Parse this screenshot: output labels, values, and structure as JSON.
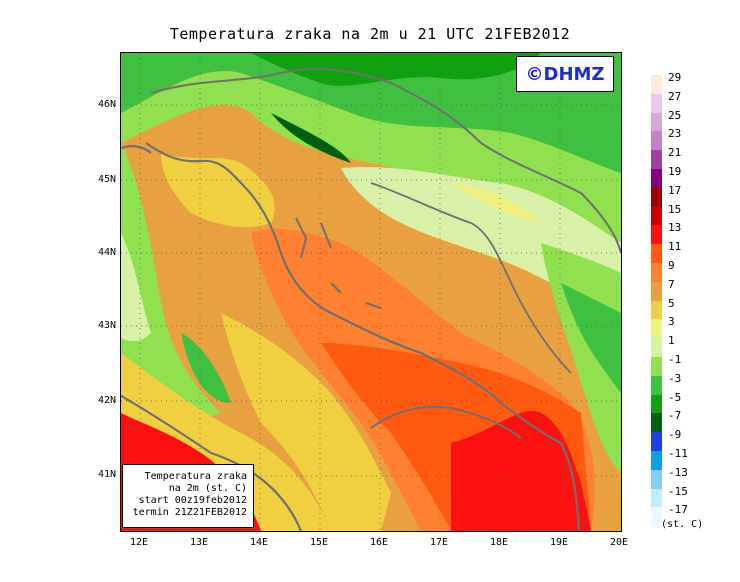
{
  "title": "Temperatura zraka na 2m u 21 UTC 21FEB2012",
  "logo": "©DHMZ",
  "info": {
    "line1": "Temperatura zraka",
    "line2": "na 2m (st. C)",
    "line3": "start 00z19feb2012",
    "line4": "termin 21Z21FEB2012"
  },
  "lat_ticks": [
    "46N",
    "45N",
    "44N",
    "43N",
    "42N",
    "41N"
  ],
  "lon_ticks": [
    "12E",
    "13E",
    "14E",
    "15E",
    "16E",
    "17E",
    "18E",
    "19E",
    "20E"
  ],
  "legend": {
    "labels": [
      "29",
      "27",
      "25",
      "23",
      "21",
      "19",
      "17",
      "15",
      "13",
      "11",
      "9",
      "7",
      "5",
      "3",
      "1",
      "-1",
      "-3",
      "-5",
      "-7",
      "-9",
      "-11",
      "-13",
      "-15",
      "-17"
    ],
    "colors": [
      "#fbe9d9",
      "#e8c8e8",
      "#d8a8d8",
      "#c880c8",
      "#a040a0",
      "#800080",
      "#a00000",
      "#c80000",
      "#ff1010",
      "#ff5a10",
      "#ff8030",
      "#e8a040",
      "#f0d040",
      "#f0f080",
      "#d8f0a8",
      "#90e050",
      "#40c040",
      "#10a010",
      "#006010",
      "#2040e0",
      "#10a0e0",
      "#80d0f0",
      "#c0ecf8",
      "#e8faff"
    ],
    "units": "(st. C)"
  },
  "colors": {
    "sea_warm": "#ff5a10",
    "sea_hot": "#ff1010",
    "coast_warm": "#e8a040",
    "land_green": "#40c040",
    "land_dark_green": "#10a010",
    "land_light": "#d8f0a8",
    "land_yellow": "#f0d040",
    "outline": "#707070"
  }
}
